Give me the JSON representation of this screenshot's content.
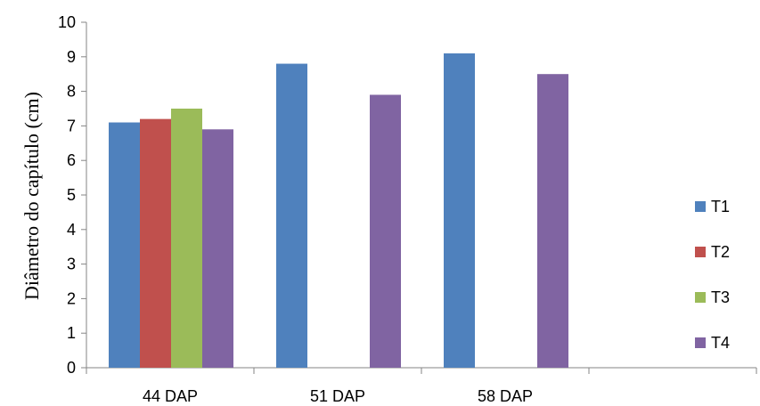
{
  "chart_data": {
    "type": "bar",
    "title": "",
    "xlabel": "",
    "ylabel": "Diâmetro do capítulo (cm)",
    "ylim": [
      0,
      10
    ],
    "yticks": [
      0,
      1,
      2,
      3,
      4,
      5,
      6,
      7,
      8,
      9,
      10
    ],
    "categories": [
      "44 DAP",
      "51 DAP",
      "58 DAP"
    ],
    "series": [
      {
        "name": "T1",
        "color": "#4F81BD",
        "values": [
          7.1,
          8.8,
          9.1
        ]
      },
      {
        "name": "T2",
        "color": "#C0504D",
        "values": [
          7.2,
          null,
          null
        ]
      },
      {
        "name": "T3",
        "color": "#9BBB59",
        "values": [
          7.5,
          null,
          null
        ]
      },
      {
        "name": "T4",
        "color": "#8064A2",
        "values": [
          6.9,
          7.9,
          8.5
        ]
      }
    ],
    "grid": false,
    "legend_position": "right"
  }
}
